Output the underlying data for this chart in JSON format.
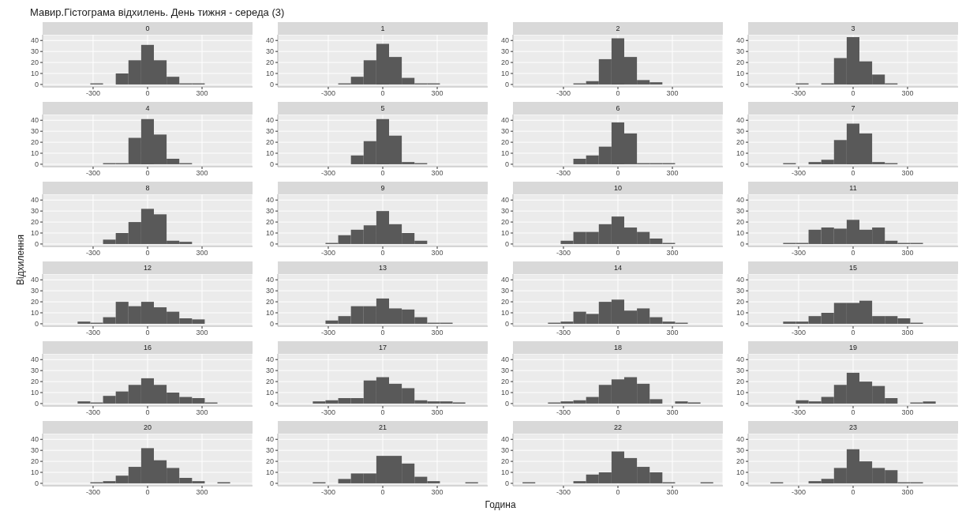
{
  "chart_data": [
    {
      "type": "histogram",
      "title": "0",
      "annotations": [
        "Мавир.Гістограма відхилень. День тижня - середа (3)"
      ],
      "bins": [
        -315,
        -245,
        -175,
        -105,
        -35,
        35,
        105,
        175,
        245,
        315
      ],
      "values": [
        1,
        0,
        10,
        22,
        36,
        22,
        7,
        1,
        1
      ],
      "color": "#595959",
      "xlim": [
        -578,
        578
      ],
      "ylim": [
        -2.2,
        45.2
      ],
      "xticks": [
        -300,
        0,
        300
      ],
      "yticks": [
        0,
        10,
        20,
        30,
        40
      ],
      "grid": true
    },
    {
      "type": "histogram",
      "title": "1",
      "bins": [
        -245,
        -175,
        -105,
        -35,
        35,
        105,
        175,
        245,
        315
      ],
      "values": [
        1,
        7,
        22,
        37,
        25,
        6,
        1,
        1
      ],
      "color": "#595959",
      "xlim": [
        -578,
        578
      ],
      "ylim": [
        -2.2,
        45.2
      ],
      "xticks": [
        -300,
        0,
        300
      ],
      "yticks": [
        0,
        10,
        20,
        30,
        40
      ],
      "grid": true
    },
    {
      "type": "histogram",
      "title": "2",
      "bins": [
        -245,
        -175,
        -105,
        -35,
        35,
        105,
        175,
        245
      ],
      "values": [
        1,
        3,
        23,
        42,
        25,
        4,
        2
      ],
      "color": "#595959",
      "xlim": [
        -578,
        578
      ],
      "ylim": [
        -2.2,
        45.2
      ],
      "xticks": [
        -300,
        0,
        300
      ],
      "yticks": [
        0,
        10,
        20,
        30,
        40
      ],
      "grid": true
    },
    {
      "type": "histogram",
      "title": "3",
      "bins": [
        -315,
        -245,
        -175,
        -105,
        -35,
        35,
        105,
        175,
        245
      ],
      "values": [
        1,
        0,
        1,
        24,
        43,
        21,
        9,
        1
      ],
      "color": "#595959",
      "xlim": [
        -578,
        578
      ],
      "ylim": [
        -2.2,
        45.2
      ],
      "xticks": [
        -300,
        0,
        300
      ],
      "yticks": [
        0,
        10,
        20,
        30,
        40
      ],
      "grid": true
    },
    {
      "type": "histogram",
      "title": "4",
      "bins": [
        -245,
        -175,
        -105,
        -35,
        35,
        105,
        175,
        245
      ],
      "values": [
        1,
        1,
        24,
        41,
        27,
        5,
        1
      ],
      "color": "#595959",
      "xlim": [
        -578,
        578
      ],
      "ylim": [
        -2.2,
        45.2
      ],
      "xticks": [
        -300,
        0,
        300
      ],
      "yticks": [
        0,
        10,
        20,
        30,
        40
      ],
      "grid": true
    },
    {
      "type": "histogram",
      "title": "5",
      "bins": [
        -175,
        -105,
        -35,
        35,
        105,
        175,
        245
      ],
      "values": [
        8,
        21,
        41,
        26,
        2,
        1
      ],
      "color": "#595959",
      "xlim": [
        -578,
        578
      ],
      "ylim": [
        -2.2,
        45.2
      ],
      "xticks": [
        -300,
        0,
        300
      ],
      "yticks": [
        0,
        10,
        20,
        30,
        40
      ],
      "grid": true
    },
    {
      "type": "histogram",
      "title": "6",
      "bins": [
        -245,
        -175,
        -105,
        -35,
        35,
        105,
        175,
        245,
        315
      ],
      "values": [
        5,
        8,
        16,
        38,
        28,
        1,
        1,
        1
      ],
      "color": "#595959",
      "xlim": [
        -578,
        578
      ],
      "ylim": [
        -2.2,
        45.2
      ],
      "xticks": [
        -300,
        0,
        300
      ],
      "yticks": [
        0,
        10,
        20,
        30,
        40
      ],
      "grid": true
    },
    {
      "type": "histogram",
      "title": "7",
      "bins": [
        -385,
        -315,
        -245,
        -175,
        -105,
        -35,
        35,
        105,
        175,
        245
      ],
      "values": [
        1,
        0,
        2,
        4,
        22,
        37,
        28,
        2,
        1
      ],
      "color": "#595959",
      "xlim": [
        -578,
        578
      ],
      "ylim": [
        -2.2,
        45.2
      ],
      "xticks": [
        -300,
        0,
        300
      ],
      "yticks": [
        0,
        10,
        20,
        30,
        40
      ],
      "grid": true
    },
    {
      "type": "histogram",
      "title": "8",
      "bins": [
        -245,
        -175,
        -105,
        -35,
        35,
        105,
        175,
        245
      ],
      "values": [
        4,
        10,
        20,
        32,
        27,
        3,
        2
      ],
      "color": "#595959",
      "xlim": [
        -578,
        578
      ],
      "ylim": [
        -2.2,
        45.2
      ],
      "xticks": [
        -300,
        0,
        300
      ],
      "yticks": [
        0,
        10,
        20,
        30,
        40
      ],
      "grid": true
    },
    {
      "type": "histogram",
      "title": "9",
      "bins": [
        -315,
        -245,
        -175,
        -105,
        -35,
        35,
        105,
        175,
        245
      ],
      "values": [
        1,
        8,
        13,
        17,
        30,
        18,
        10,
        3
      ],
      "color": "#595959",
      "xlim": [
        -578,
        578
      ],
      "ylim": [
        -2.2,
        45.2
      ],
      "xticks": [
        -300,
        0,
        300
      ],
      "yticks": [
        0,
        10,
        20,
        30,
        40
      ],
      "grid": true
    },
    {
      "type": "histogram",
      "title": "10",
      "bins": [
        -315,
        -245,
        -175,
        -105,
        -35,
        35,
        105,
        175,
        245,
        315
      ],
      "values": [
        3,
        11,
        11,
        18,
        25,
        15,
        11,
        5,
        1
      ],
      "color": "#595959",
      "xlim": [
        -578,
        578
      ],
      "ylim": [
        -2.2,
        45.2
      ],
      "xticks": [
        -300,
        0,
        300
      ],
      "yticks": [
        0,
        10,
        20,
        30,
        40
      ],
      "grid": true
    },
    {
      "type": "histogram",
      "title": "11",
      "bins": [
        -385,
        -315,
        -245,
        -175,
        -105,
        -35,
        35,
        105,
        175,
        245,
        315,
        385
      ],
      "values": [
        1,
        1,
        13,
        15,
        14,
        22,
        13,
        15,
        3,
        1,
        1
      ],
      "color": "#595959",
      "xlim": [
        -578,
        578
      ],
      "ylim": [
        -2.2,
        45.2
      ],
      "xticks": [
        -300,
        0,
        300
      ],
      "yticks": [
        0,
        10,
        20,
        30,
        40
      ],
      "grid": true
    },
    {
      "type": "histogram",
      "title": "12",
      "ylabel": "Відхилення",
      "bins": [
        -385,
        -315,
        -245,
        -175,
        -105,
        -35,
        35,
        105,
        175,
        245,
        315
      ],
      "values": [
        2,
        1,
        6,
        20,
        16,
        20,
        15,
        11,
        5,
        4
      ],
      "color": "#595959",
      "xlim": [
        -578,
        578
      ],
      "ylim": [
        -2.2,
        45.2
      ],
      "xticks": [
        -300,
        0,
        300
      ],
      "yticks": [
        0,
        10,
        20,
        30,
        40
      ],
      "grid": true
    },
    {
      "type": "histogram",
      "title": "13",
      "bins": [
        -315,
        -245,
        -175,
        -105,
        -35,
        35,
        105,
        175,
        245,
        315,
        385
      ],
      "values": [
        3,
        7,
        16,
        16,
        23,
        14,
        13,
        6,
        1,
        1
      ],
      "color": "#595959",
      "xlim": [
        -578,
        578
      ],
      "ylim": [
        -2.2,
        45.2
      ],
      "xticks": [
        -300,
        0,
        300
      ],
      "yticks": [
        0,
        10,
        20,
        30,
        40
      ],
      "grid": true
    },
    {
      "type": "histogram",
      "title": "14",
      "bins": [
        -385,
        -315,
        -245,
        -175,
        -105,
        -35,
        35,
        105,
        175,
        245,
        315,
        385
      ],
      "values": [
        1,
        2,
        11,
        9,
        20,
        22,
        12,
        14,
        6,
        2,
        1
      ],
      "color": "#595959",
      "xlim": [
        -578,
        578
      ],
      "ylim": [
        -2.2,
        45.2
      ],
      "xticks": [
        -300,
        0,
        300
      ],
      "yticks": [
        0,
        10,
        20,
        30,
        40
      ],
      "grid": true
    },
    {
      "type": "histogram",
      "title": "15",
      "bins": [
        -385,
        -315,
        -245,
        -175,
        -105,
        -35,
        35,
        105,
        175,
        245,
        315,
        385
      ],
      "values": [
        2,
        2,
        7,
        10,
        19,
        19,
        21,
        7,
        7,
        5,
        1
      ],
      "color": "#595959",
      "xlim": [
        -578,
        578
      ],
      "ylim": [
        -2.2,
        45.2
      ],
      "xticks": [
        -300,
        0,
        300
      ],
      "yticks": [
        0,
        10,
        20,
        30,
        40
      ],
      "grid": true
    },
    {
      "type": "histogram",
      "title": "16",
      "bins": [
        -385,
        -315,
        -245,
        -175,
        -105,
        -35,
        35,
        105,
        175,
        245,
        315,
        385
      ],
      "values": [
        2,
        1,
        7,
        11,
        17,
        23,
        17,
        10,
        6,
        5,
        1
      ],
      "color": "#595959",
      "xlim": [
        -578,
        578
      ],
      "ylim": [
        -2.2,
        45.2
      ],
      "xticks": [
        -300,
        0,
        300
      ],
      "yticks": [
        0,
        10,
        20,
        30,
        40
      ],
      "grid": true
    },
    {
      "type": "histogram",
      "title": "17",
      "bins": [
        -385,
        -315,
        -245,
        -175,
        -105,
        -35,
        35,
        105,
        175,
        245,
        315,
        385,
        455
      ],
      "values": [
        2,
        3,
        5,
        5,
        21,
        24,
        18,
        14,
        3,
        2,
        2,
        1
      ],
      "color": "#595959",
      "xlim": [
        -578,
        578
      ],
      "ylim": [
        -2.2,
        45.2
      ],
      "xticks": [
        -300,
        0,
        300
      ],
      "yticks": [
        0,
        10,
        20,
        30,
        40
      ],
      "grid": true
    },
    {
      "type": "histogram",
      "title": "18",
      "bins": [
        -385,
        -315,
        -245,
        -175,
        -105,
        -35,
        35,
        105,
        175,
        245,
        315,
        385,
        455
      ],
      "values": [
        1,
        2,
        3,
        6,
        17,
        22,
        24,
        18,
        4,
        0,
        2,
        1
      ],
      "color": "#595959",
      "xlim": [
        -578,
        578
      ],
      "ylim": [
        -2.2,
        45.2
      ],
      "xticks": [
        -300,
        0,
        300
      ],
      "yticks": [
        0,
        10,
        20,
        30,
        40
      ],
      "grid": true
    },
    {
      "type": "histogram",
      "title": "19",
      "bins": [
        -315,
        -245,
        -175,
        -105,
        -35,
        35,
        105,
        175,
        245,
        315,
        385,
        455
      ],
      "values": [
        3,
        2,
        6,
        17,
        28,
        20,
        16,
        5,
        0,
        1,
        2
      ],
      "color": "#595959",
      "xlim": [
        -578,
        578
      ],
      "ylim": [
        -2.2,
        45.2
      ],
      "xticks": [
        -300,
        0,
        300
      ],
      "yticks": [
        0,
        10,
        20,
        30,
        40
      ],
      "grid": true
    },
    {
      "type": "histogram",
      "title": "20",
      "bins": [
        -315,
        -245,
        -175,
        -105,
        -35,
        35,
        105,
        175,
        245,
        315,
        385,
        455
      ],
      "values": [
        1,
        2,
        7,
        15,
        32,
        21,
        14,
        5,
        2,
        0,
        1
      ],
      "color": "#595959",
      "xlim": [
        -578,
        578
      ],
      "ylim": [
        -2.2,
        45.2
      ],
      "xticks": [
        -300,
        0,
        300
      ],
      "yticks": [
        0,
        10,
        20,
        30,
        40
      ],
      "grid": true
    },
    {
      "type": "histogram",
      "title": "21",
      "xlabel": "Година",
      "bins": [
        -385,
        -315,
        -245,
        -175,
        -105,
        -35,
        35,
        105,
        175,
        245,
        315,
        385,
        455,
        525
      ],
      "values": [
        1,
        0,
        4,
        9,
        9,
        25,
        25,
        18,
        6,
        2,
        0,
        0,
        1
      ],
      "color": "#595959",
      "xlim": [
        -578,
        578
      ],
      "ylim": [
        -2.2,
        45.2
      ],
      "xticks": [
        -300,
        0,
        300
      ],
      "yticks": [
        0,
        10,
        20,
        30,
        40
      ],
      "grid": true
    },
    {
      "type": "histogram",
      "title": "22",
      "bins": [
        -525,
        -455,
        -385,
        -315,
        -245,
        -175,
        -105,
        -35,
        35,
        105,
        175,
        245,
        315,
        385,
        455,
        525
      ],
      "values": [
        1,
        0,
        0,
        0,
        2,
        8,
        10,
        29,
        23,
        15,
        10,
        1,
        0,
        0,
        1
      ],
      "color": "#595959",
      "xlim": [
        -578,
        578
      ],
      "ylim": [
        -2.2,
        45.2
      ],
      "xticks": [
        -300,
        0,
        300
      ],
      "yticks": [
        0,
        10,
        20,
        30,
        40
      ],
      "grid": true
    },
    {
      "type": "histogram",
      "title": "23",
      "bins": [
        -455,
        -385,
        -315,
        -245,
        -175,
        -105,
        -35,
        35,
        105,
        175,
        245,
        315,
        385
      ],
      "values": [
        1,
        0,
        0,
        2,
        4,
        14,
        31,
        20,
        14,
        12,
        1,
        1
      ],
      "color": "#595959",
      "xlim": [
        -578,
        578
      ],
      "ylim": [
        -2.2,
        45.2
      ],
      "xticks": [
        -300,
        0,
        300
      ],
      "yticks": [
        0,
        10,
        20,
        30,
        40
      ],
      "grid": true
    }
  ]
}
